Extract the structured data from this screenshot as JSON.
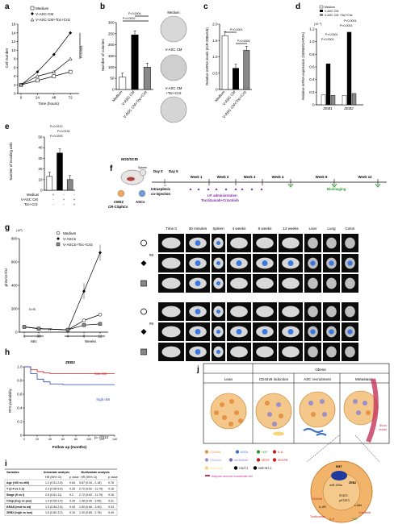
{
  "panels": {
    "a": {
      "label": "a",
      "legend": [
        "Medium",
        "V-ASC CM",
        "V-ASC CM+Toc+Criz"
      ],
      "ylabel": "Cell number",
      "xlabel": "Time (hours)",
      "xticks": [
        "0",
        "24",
        "48",
        "72"
      ],
      "yticks": [
        "0",
        "2",
        "4",
        "6",
        "8",
        "10",
        "12",
        "14",
        "16"
      ],
      "stat1": "P=0.0001",
      "stat2": "P=0.0001"
    },
    "b": {
      "label": "b",
      "ylabel": "Number of colonies",
      "yticks": [
        "0",
        "50",
        "100",
        "150",
        "200",
        "250",
        "300"
      ],
      "categories": [
        "Medium",
        "V-ASC CM",
        "V-ASC CM+Toc+Criz"
      ],
      "stat1": "P=0.0004",
      "stat2": "P=0.0002",
      "plate_labels": [
        "Medium",
        "V-ASC CM",
        "V-ASC CM\n+Toc+Criz"
      ]
    },
    "c": {
      "label": "c",
      "ylabel": "Relative miRNA levels (miR-200a/U6)",
      "yticks": [
        "0",
        "0.5",
        "1.0",
        "1.5",
        "2.0"
      ],
      "categories": [
        "Medium",
        "V-ASC CM",
        "V-ASC CM+Toc+Criz"
      ],
      "stat1": "P<0.0001",
      "stat2": "P=0.0004"
    },
    "d": {
      "label": "d",
      "legend": [
        "Medium",
        "V-ASC CM",
        "V-ASC CM +Toc+Criz"
      ],
      "ylabel": "Relative mRNA expression (GENE/GAPDH)",
      "exponent": "(10⁻³)",
      "yticks": [
        "0",
        "0.2",
        "0.4",
        "0.6",
        "0.8",
        "1.0",
        "1.2"
      ],
      "groups": [
        "ZEB1",
        "ZEB2"
      ],
      "stats": [
        "P<0.0001",
        "P<0.0001",
        "P<0.0001",
        "P<0.0001"
      ]
    },
    "e": {
      "label": "e",
      "ylabel": "Number of invading cells",
      "yticks": [
        "0",
        "10",
        "20",
        "30",
        "40",
        "50"
      ],
      "row_labels": [
        "Medium",
        "V-ASC CM",
        "Toc+Criz"
      ],
      "signs": [
        [
          "+",
          "-",
          "-"
        ],
        [
          "-",
          "+",
          "+"
        ],
        [
          "-",
          "-",
          "+"
        ]
      ],
      "stats": [
        "P=0.0212",
        "P=0.0134",
        "P=0.0293"
      ]
    },
    "f": {
      "label": "f",
      "mouse": "NOD/SCID",
      "organ": "Spleen",
      "cells": [
        "CMS2",
        "CR-CSphCs",
        "ASCs"
      ],
      "day0": "Day 0",
      "day5": "Day 5",
      "injection": "Intrasplenic co-injection",
      "weeks": [
        "Week 1",
        "Week 2",
        "Week 3",
        "Week 4",
        "Week 8",
        "Week 12"
      ],
      "admin": "I.P. administration",
      "drugs": "Tocilizumab+Crizotinib",
      "bioimaging": "Bioimaging"
    },
    "g": {
      "label": "g",
      "exponent": "(10³)",
      "ylabel": "ph/s/cm²/sr",
      "legend": [
        "Medium",
        "V-ASCs",
        "V-ASCs+Toc+Criz"
      ],
      "n": "n=6",
      "xticks": [
        "0",
        "30",
        "4",
        "8",
        "12"
      ],
      "yticks": [
        "0",
        "200",
        "400",
        "600",
        "800"
      ],
      "min_label": "Min",
      "weeks_label": "Weeks",
      "image_columns": [
        "Time 0",
        "30 minutes",
        "Spleen",
        "4 weeks",
        "8 weeks",
        "12 weeks",
        "Liver",
        "Lung",
        "Colon"
      ],
      "sample_ids": [
        "#8",
        "#9"
      ]
    },
    "h": {
      "label": "h",
      "title": "ZEB2",
      "ylabel": "RFS probability",
      "xlabel": "Follow up (months)",
      "low": "low=56",
      "high": "high=56",
      "pvalue": "p= 0.013",
      "yticks": [
        "0",
        "0.2",
        "0.4",
        "0.6",
        "0.8",
        "1.0"
      ],
      "xticks": [
        "0",
        "20",
        "40",
        "60",
        "80",
        "100",
        "120",
        "140"
      ]
    },
    "i": {
      "label": "i",
      "header1": [
        "Variables",
        "Univariate analysis",
        "Multivariate analysis"
      ],
      "header2": [
        "HR (95% CI)",
        "p value",
        "HR (95% CI)",
        "p value"
      ],
      "rows": [
        [
          "Age (<60 vs ≥60)",
          "1.2 (0.51-2.8)",
          "0.64",
          "0.87 (0.34 - 2.18)",
          "0.76"
        ],
        [
          "T (1-4 vs 1-2)",
          "2.3 (0.55-9.6)",
          "0.26",
          "2.72 (0.62 - 11.79)",
          "0.18"
        ],
        [
          "Stage (II vs I)",
          "2.5 (0.61-11)",
          "0.2",
          "2.72 (0.62 - 11.79)",
          "0.18"
        ],
        [
          "Cimp (neg vs pos)",
          "1.4 (0.59-3.4)",
          "0.34",
          "1.48 (0.60 - 3.55)",
          "0.31"
        ],
        [
          "KRAS (mut vs wt)",
          "1.3 (0.54-2.8)",
          "0.43",
          "1.50 (0.66 - 3.40)",
          "0.33"
        ],
        [
          "ZEB2 (high vs low)",
          "1.6 (0.82-3.2)",
          "0.16",
          "1.30 (0.60 - 2.78)",
          "0.49"
        ]
      ]
    },
    "j": {
      "label": "j",
      "obese": "Obese",
      "stages": [
        "Lean",
        "CD44v6 induction",
        "ASC recruitment",
        "Metastasis"
      ],
      "blood_vessel": "Blood vessel",
      "legend": [
        "CD44v6-",
        "ASCs",
        "HGF",
        "IL-6",
        "CD44v6+",
        "mCD44v6+",
        "VEGF",
        "VEGFR",
        "Adipocyte",
        "CD271",
        "NGF/NT-3",
        "Adipose-derived endothelial cell"
      ],
      "cell_labels": [
        "EMT",
        "ZEB2",
        "miR-200a",
        "c-Met",
        "IL-6R",
        "STAT3",
        "pSTAT3",
        "Crizotinib",
        "Tocilizumab",
        "HGF",
        "IL-6",
        "CD44v6"
      ]
    }
  },
  "chart_data": [
    {
      "panel": "a",
      "type": "line",
      "x": [
        0,
        24,
        48,
        72
      ],
      "series": [
        {
          "name": "Medium",
          "values": [
            2,
            3,
            4,
            5
          ]
        },
        {
          "name": "V-ASC CM",
          "values": [
            2,
            5,
            9,
            14
          ]
        },
        {
          "name": "V-ASC CM+Toc+Criz",
          "values": [
            2,
            4,
            5,
            8
          ]
        }
      ],
      "ylim": [
        0,
        16
      ]
    },
    {
      "panel": "b",
      "type": "bar",
      "categories": [
        "Medium",
        "V-ASC CM",
        "V-ASC CM+Toc+Criz"
      ],
      "values": [
        55,
        245,
        100
      ],
      "ylim": [
        0,
        300
      ]
    },
    {
      "panel": "c",
      "type": "bar",
      "categories": [
        "Medium",
        "V-ASC CM",
        "V-ASC CM+Toc+Criz"
      ],
      "values": [
        1.65,
        0.65,
        1.2
      ],
      "ylim": [
        0,
        2
      ]
    },
    {
      "panel": "d",
      "type": "bar",
      "categories": [
        "ZEB1",
        "ZEB2"
      ],
      "series": [
        {
          "name": "Medium",
          "values": [
            0.16,
            0.15
          ]
        },
        {
          "name": "V-ASC CM",
          "values": [
            0.65,
            1.15
          ]
        },
        {
          "name": "V-ASC CM +Toc+Criz",
          "values": [
            0.15,
            0.18
          ]
        }
      ],
      "ylim": [
        0,
        1.2
      ]
    },
    {
      "panel": "e",
      "type": "bar",
      "categories": [
        "1",
        "2",
        "3"
      ],
      "values": [
        13,
        35,
        10
      ],
      "ylim": [
        0,
        50
      ]
    },
    {
      "panel": "g",
      "type": "line",
      "x": [
        "0",
        "30",
        "4",
        "8",
        "12"
      ],
      "series": [
        {
          "name": "Medium",
          "values": [
            45,
            30,
            20,
            100,
            150
          ]
        },
        {
          "name": "V-ASCs",
          "values": [
            45,
            30,
            20,
            350,
            680
          ]
        },
        {
          "name": "V-ASCs+Toc+Criz",
          "values": [
            45,
            30,
            20,
            60,
            70
          ]
        }
      ],
      "ylim": [
        0,
        800
      ]
    },
    {
      "panel": "h",
      "type": "line",
      "series": [
        {
          "name": "low=56",
          "x": [
            0,
            10,
            20,
            30,
            40,
            60,
            80,
            100,
            120,
            140
          ],
          "values": [
            1.0,
            0.96,
            0.93,
            0.91,
            0.9,
            0.9,
            0.9,
            0.9,
            0.9,
            0.9
          ]
        },
        {
          "name": "high=56",
          "x": [
            0,
            10,
            20,
            30,
            40,
            60,
            80,
            100,
            120,
            140
          ],
          "values": [
            1.0,
            0.9,
            0.82,
            0.78,
            0.75,
            0.74,
            0.74,
            0.74,
            0.74,
            0.74
          ]
        }
      ],
      "xlim": [
        0,
        140
      ],
      "ylim": [
        0,
        1
      ]
    }
  ]
}
